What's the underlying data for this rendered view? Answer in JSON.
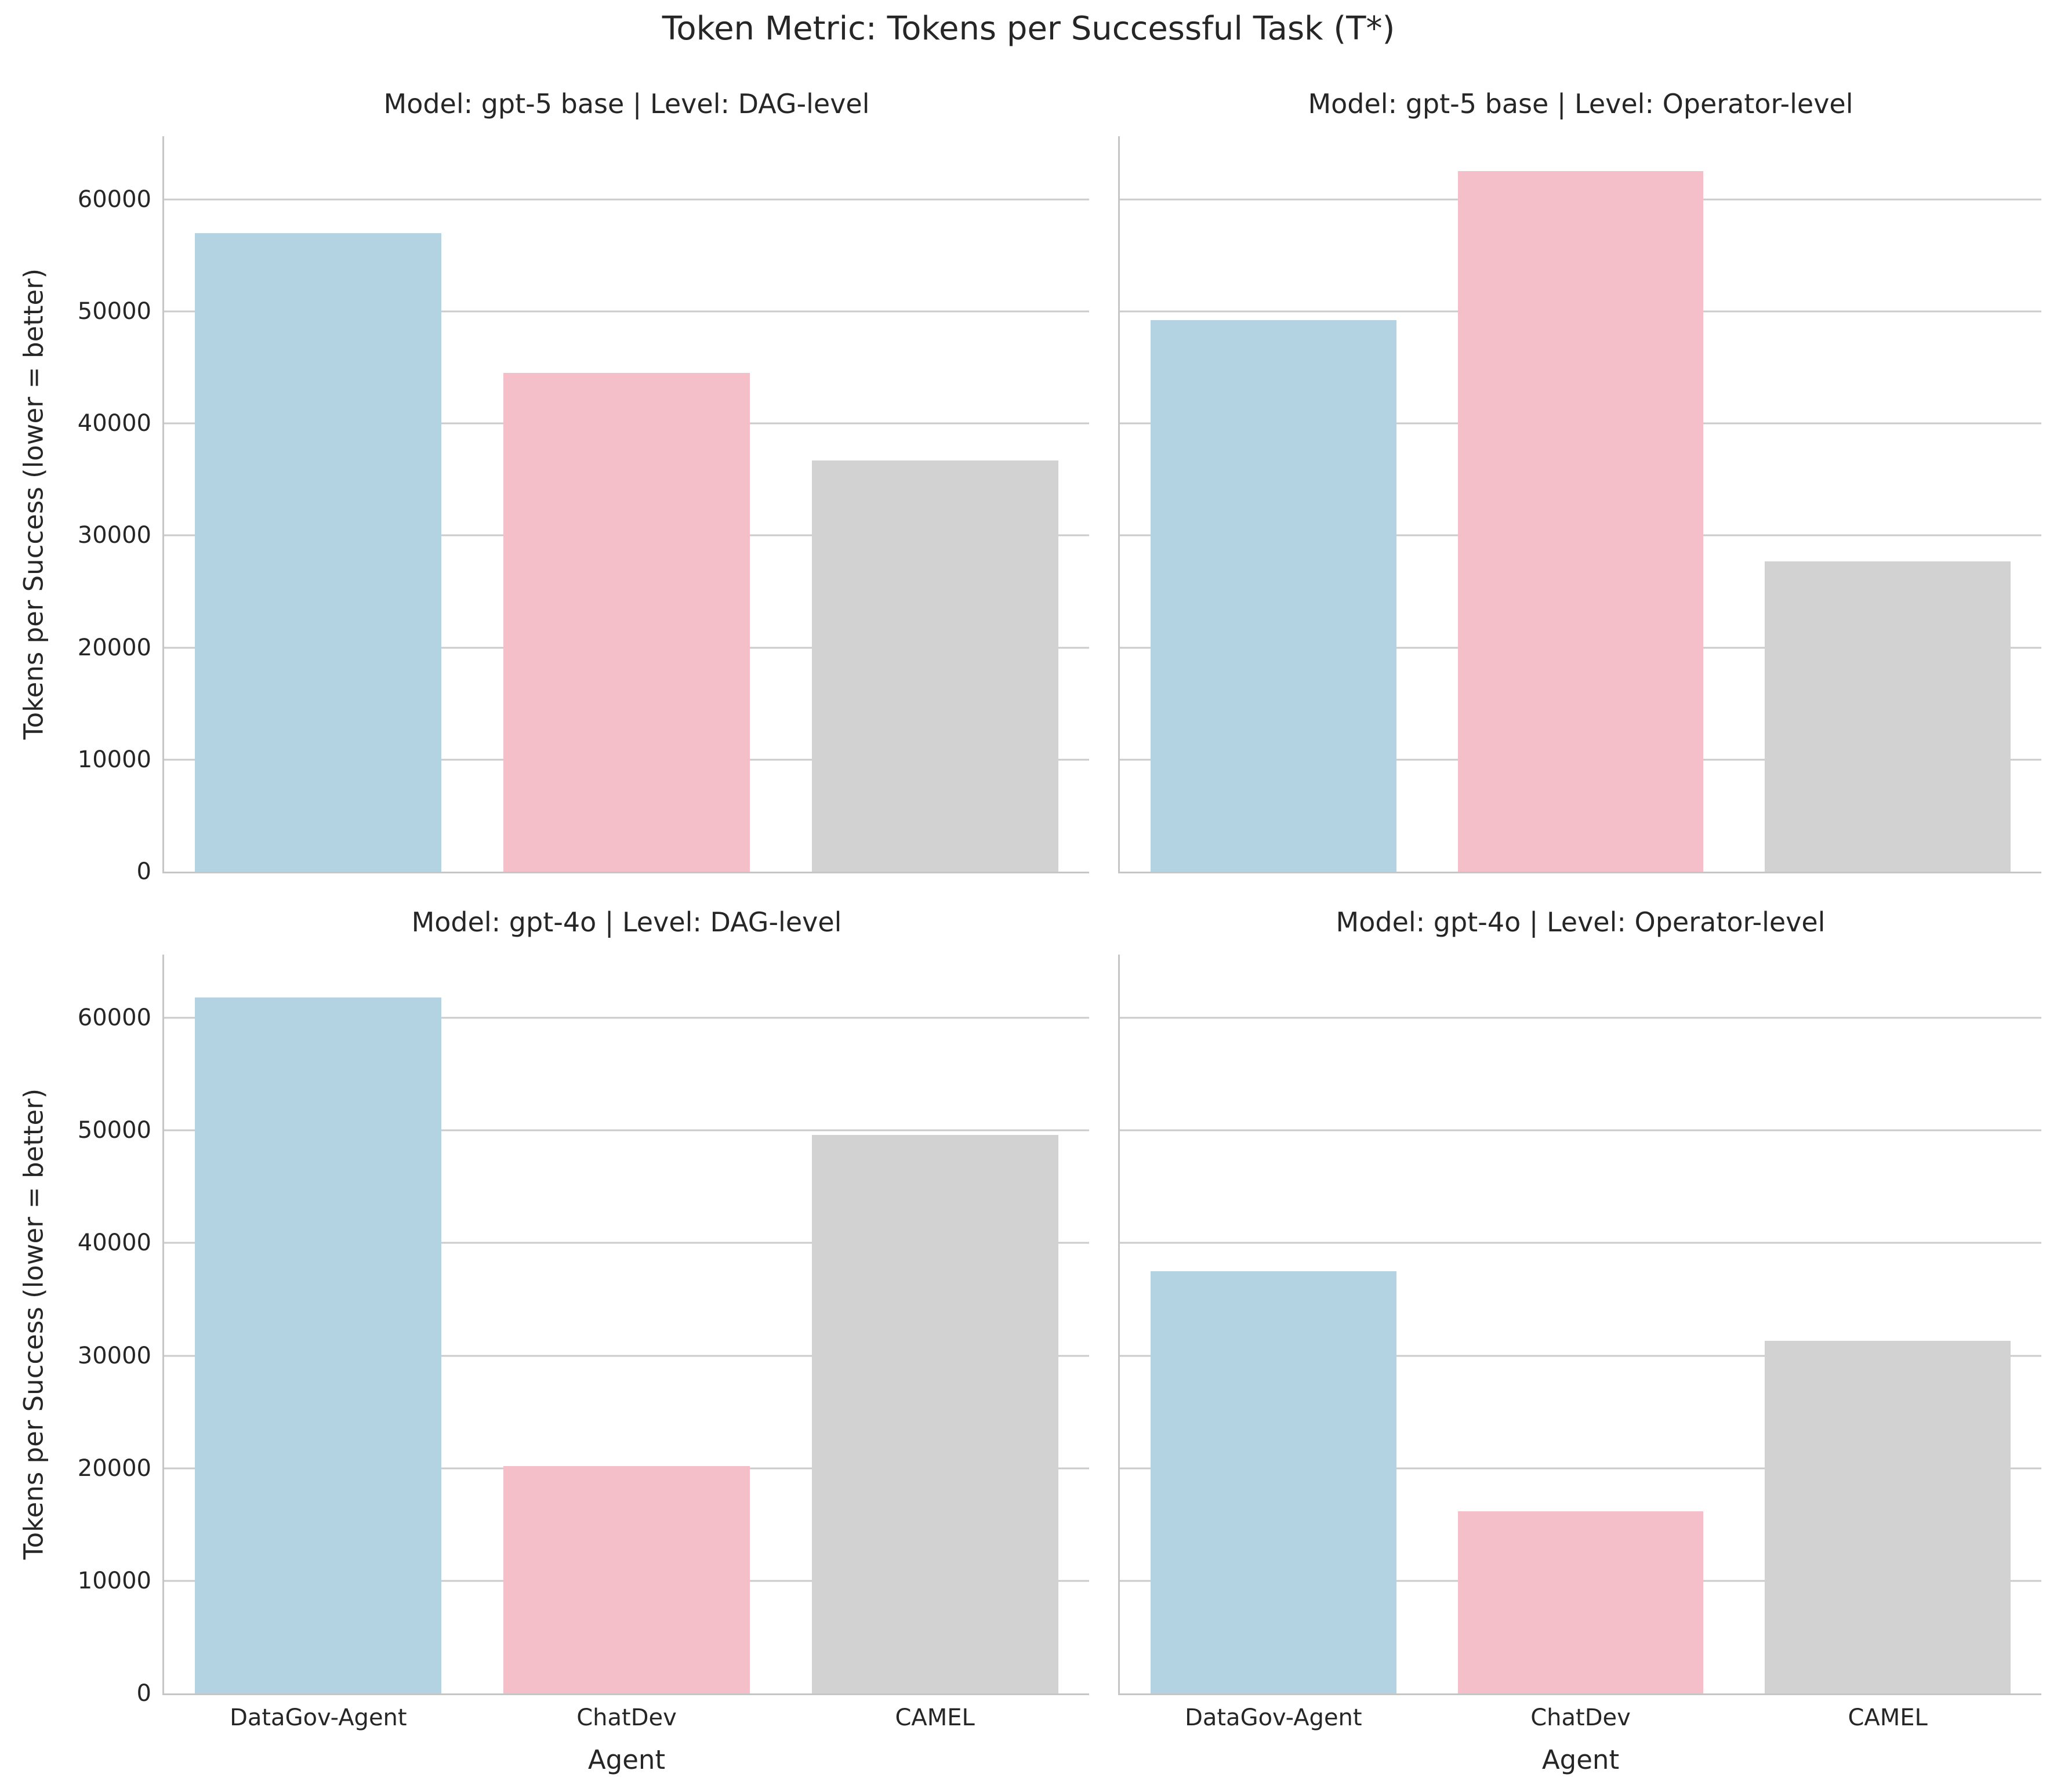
{
  "chart_data": {
    "type": "bar",
    "suptitle": "Token Metric: Tokens per Successful Task (T*)",
    "xlabel": "Agent",
    "ylabel": "Tokens per Success (lower = better)",
    "categories": [
      "DataGov-Agent",
      "ChatDev",
      "CAMEL"
    ],
    "bar_colors": [
      "#b3d3e2",
      "#f5bfca",
      "#d2d2d2"
    ],
    "ylim": [
      0,
      65625
    ],
    "yticks": [
      0,
      10000,
      20000,
      30000,
      40000,
      50000,
      60000
    ],
    "grid": "horizontal",
    "grid_color": "#cbcbcb",
    "spine_color": "#c6c6c6",
    "text_color": "#262626",
    "legend": "none",
    "facets": [
      {
        "title": "Model: gpt-5 base | Level: DAG-level",
        "model": "gpt-5 base",
        "level": "DAG-level",
        "values": [
          57000,
          44500,
          36700
        ],
        "show_ytick_labels": true,
        "show_xtick_labels": false
      },
      {
        "title": "Model: gpt-5 base | Level: Operator-level",
        "model": "gpt-5 base",
        "level": "Operator-level",
        "values": [
          49200,
          62500,
          27700
        ],
        "show_ytick_labels": false,
        "show_xtick_labels": false
      },
      {
        "title": "Model: gpt-4o | Level: DAG-level",
        "model": "gpt-4o",
        "level": "DAG-level",
        "values": [
          61800,
          20200,
          49600
        ],
        "show_ytick_labels": true,
        "show_xtick_labels": true
      },
      {
        "title": "Model: gpt-4o | Level: Operator-level",
        "model": "gpt-4o",
        "level": "Operator-level",
        "values": [
          37500,
          16200,
          31300
        ],
        "show_ytick_labels": false,
        "show_xtick_labels": true
      }
    ]
  }
}
